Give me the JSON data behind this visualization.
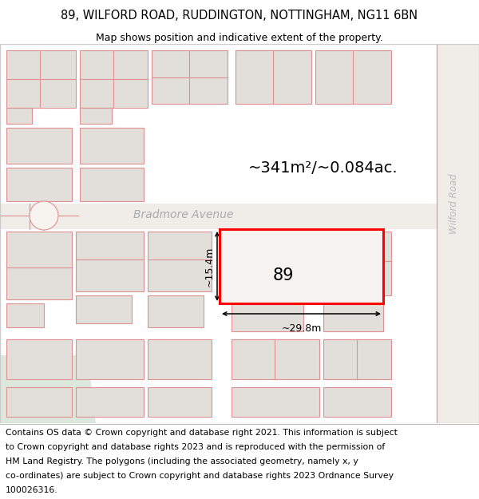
{
  "title_line1": "89, WILFORD ROAD, RUDDINGTON, NOTTINGHAM, NG11 6BN",
  "title_line2": "Map shows position and indicative extent of the property.",
  "footer_lines": [
    "Contains OS data © Crown copyright and database right 2021. This information is subject",
    "to Crown copyright and database rights 2023 and is reproduced with the permission of",
    "HM Land Registry. The polygons (including the associated geometry, namely x, y",
    "co-ordinates) are subject to Crown copyright and database rights 2023 Ordnance Survey",
    "100026316."
  ],
  "area_label": "~341m²/~0.084ac.",
  "width_label": "~29.8m",
  "height_label": "~15.4m",
  "property_number": "89",
  "street_label": "Bradmore Avenue",
  "road_label": "Wilford Road",
  "bg_color": "#ffffff",
  "map_bg": "#f7f3ef",
  "building_fill": "#e2deda",
  "building_stroke": "#e09090",
  "property_fill": "#f7f3ef",
  "property_stroke": "#ff0000",
  "title_fontsize": 10.5,
  "subtitle_fontsize": 9,
  "footer_fontsize": 7.8,
  "area_fontsize": 14,
  "label_fontsize": 9,
  "number_fontsize": 15,
  "street_fontsize": 10
}
